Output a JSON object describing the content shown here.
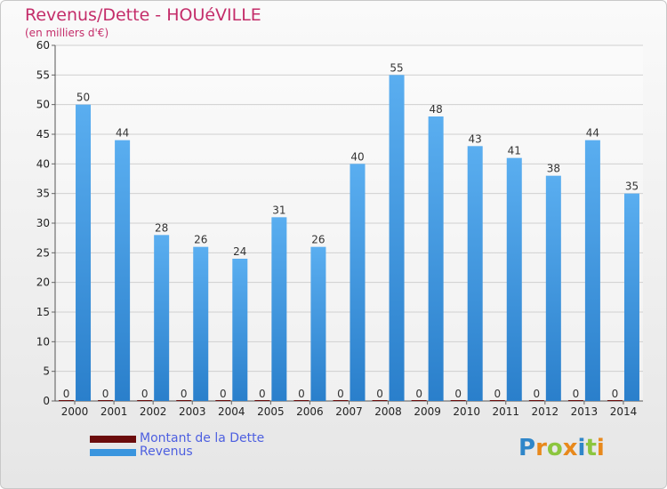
{
  "title": "Revenus/Dette - HOUéVILLE",
  "subtitle": "(en milliers d'€)",
  "colors": {
    "title": "#c42d6a",
    "debt": "#6b0c0c",
    "revenue": "#3a95de",
    "revenue_light": "#5aaef0",
    "legend_text": "#4d5fe0"
  },
  "legend": [
    {
      "label": "Montant de la Dette",
      "color": "#6b0c0c"
    },
    {
      "label": "Revenus",
      "color": "#3a95de"
    }
  ],
  "logo": {
    "text": "Proxiti",
    "letters": [
      "P",
      "r",
      "o",
      "x",
      "i",
      "t",
      "i"
    ]
  },
  "chart_data": {
    "type": "bar",
    "categories": [
      "2000",
      "2001",
      "2002",
      "2003",
      "2004",
      "2005",
      "2006",
      "2007",
      "2008",
      "2009",
      "2010",
      "2011",
      "2012",
      "2013",
      "2014"
    ],
    "series": [
      {
        "name": "Montant de la Dette",
        "values": [
          0,
          0,
          0,
          0,
          0,
          0,
          0,
          0,
          0,
          0,
          0,
          0,
          0,
          0,
          0
        ]
      },
      {
        "name": "Revenus",
        "values": [
          50,
          44,
          28,
          26,
          24,
          31,
          26,
          40,
          55,
          48,
          43,
          41,
          38,
          44,
          35
        ]
      }
    ],
    "ylim": [
      0,
      60
    ],
    "yticks": [
      0,
      5,
      10,
      15,
      20,
      25,
      30,
      35,
      40,
      45,
      50,
      55,
      60
    ],
    "grid": true,
    "legend_position": "bottom-left"
  }
}
